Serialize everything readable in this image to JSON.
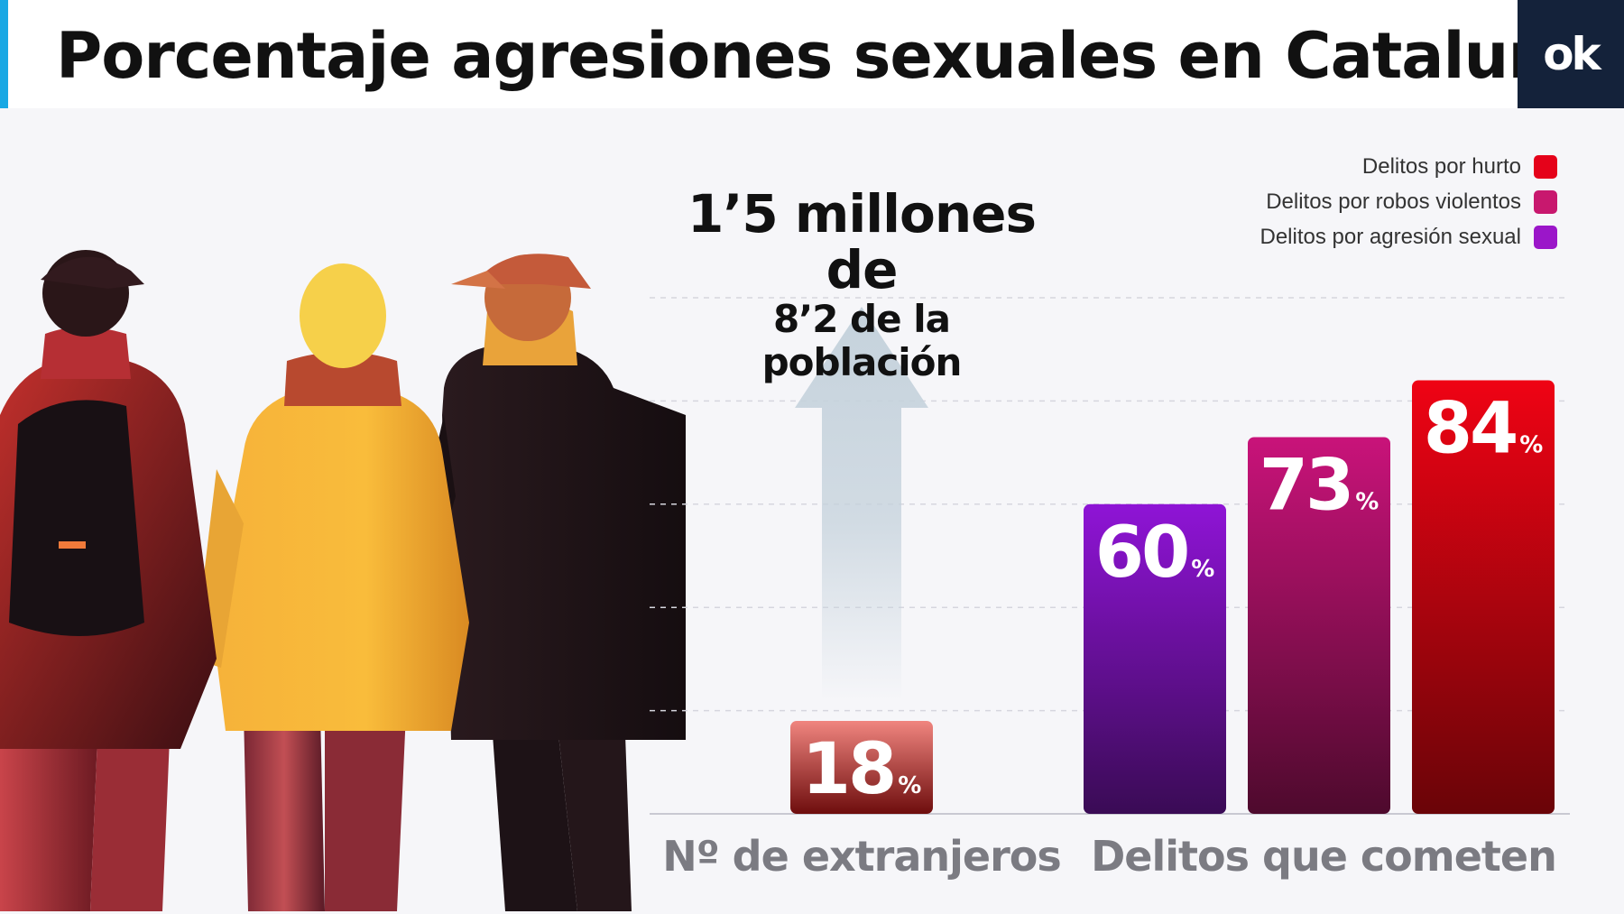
{
  "header": {
    "title": "Porcentaje agresiones sexuales en Cataluña",
    "accent_color": "#19a8e4",
    "logo_text": "ok",
    "logo_bg": "#14223a"
  },
  "annotation": {
    "line1": "1’5 millones de",
    "line2": "8’2 de la población",
    "arrow_color": "#c5d2dc"
  },
  "legend": [
    {
      "label": "Delitos por hurto",
      "color": "#e5021a"
    },
    {
      "label": "Delitos por robos violentos",
      "color": "#c8186e"
    },
    {
      "label": "Delitos por agresión sexual",
      "color": "#9b16c9"
    }
  ],
  "chart_data": {
    "type": "bar",
    "unit": "%",
    "ylim": [
      0,
      100
    ],
    "grid": true,
    "legend_placement": "top-right",
    "groups": [
      {
        "label": "Nº de extranjeros",
        "bars": [
          {
            "name": "",
            "value": 18,
            "color_top": "#f0857f",
            "color_bottom": "#6e0d0d"
          }
        ]
      },
      {
        "label": "Delitos que cometen",
        "bars": [
          {
            "name": "Delitos por agresión sexual",
            "value": 60,
            "color_top": "#8f14d6",
            "color_bottom": "#3a0b55"
          },
          {
            "name": "Delitos por robos violentos",
            "value": 73,
            "color_top": "#c9137a",
            "color_bottom": "#4e0a2d"
          },
          {
            "name": "Delitos por hurto",
            "value": 84,
            "color_top": "#ef0314",
            "color_bottom": "#6a0408"
          }
        ]
      }
    ]
  }
}
